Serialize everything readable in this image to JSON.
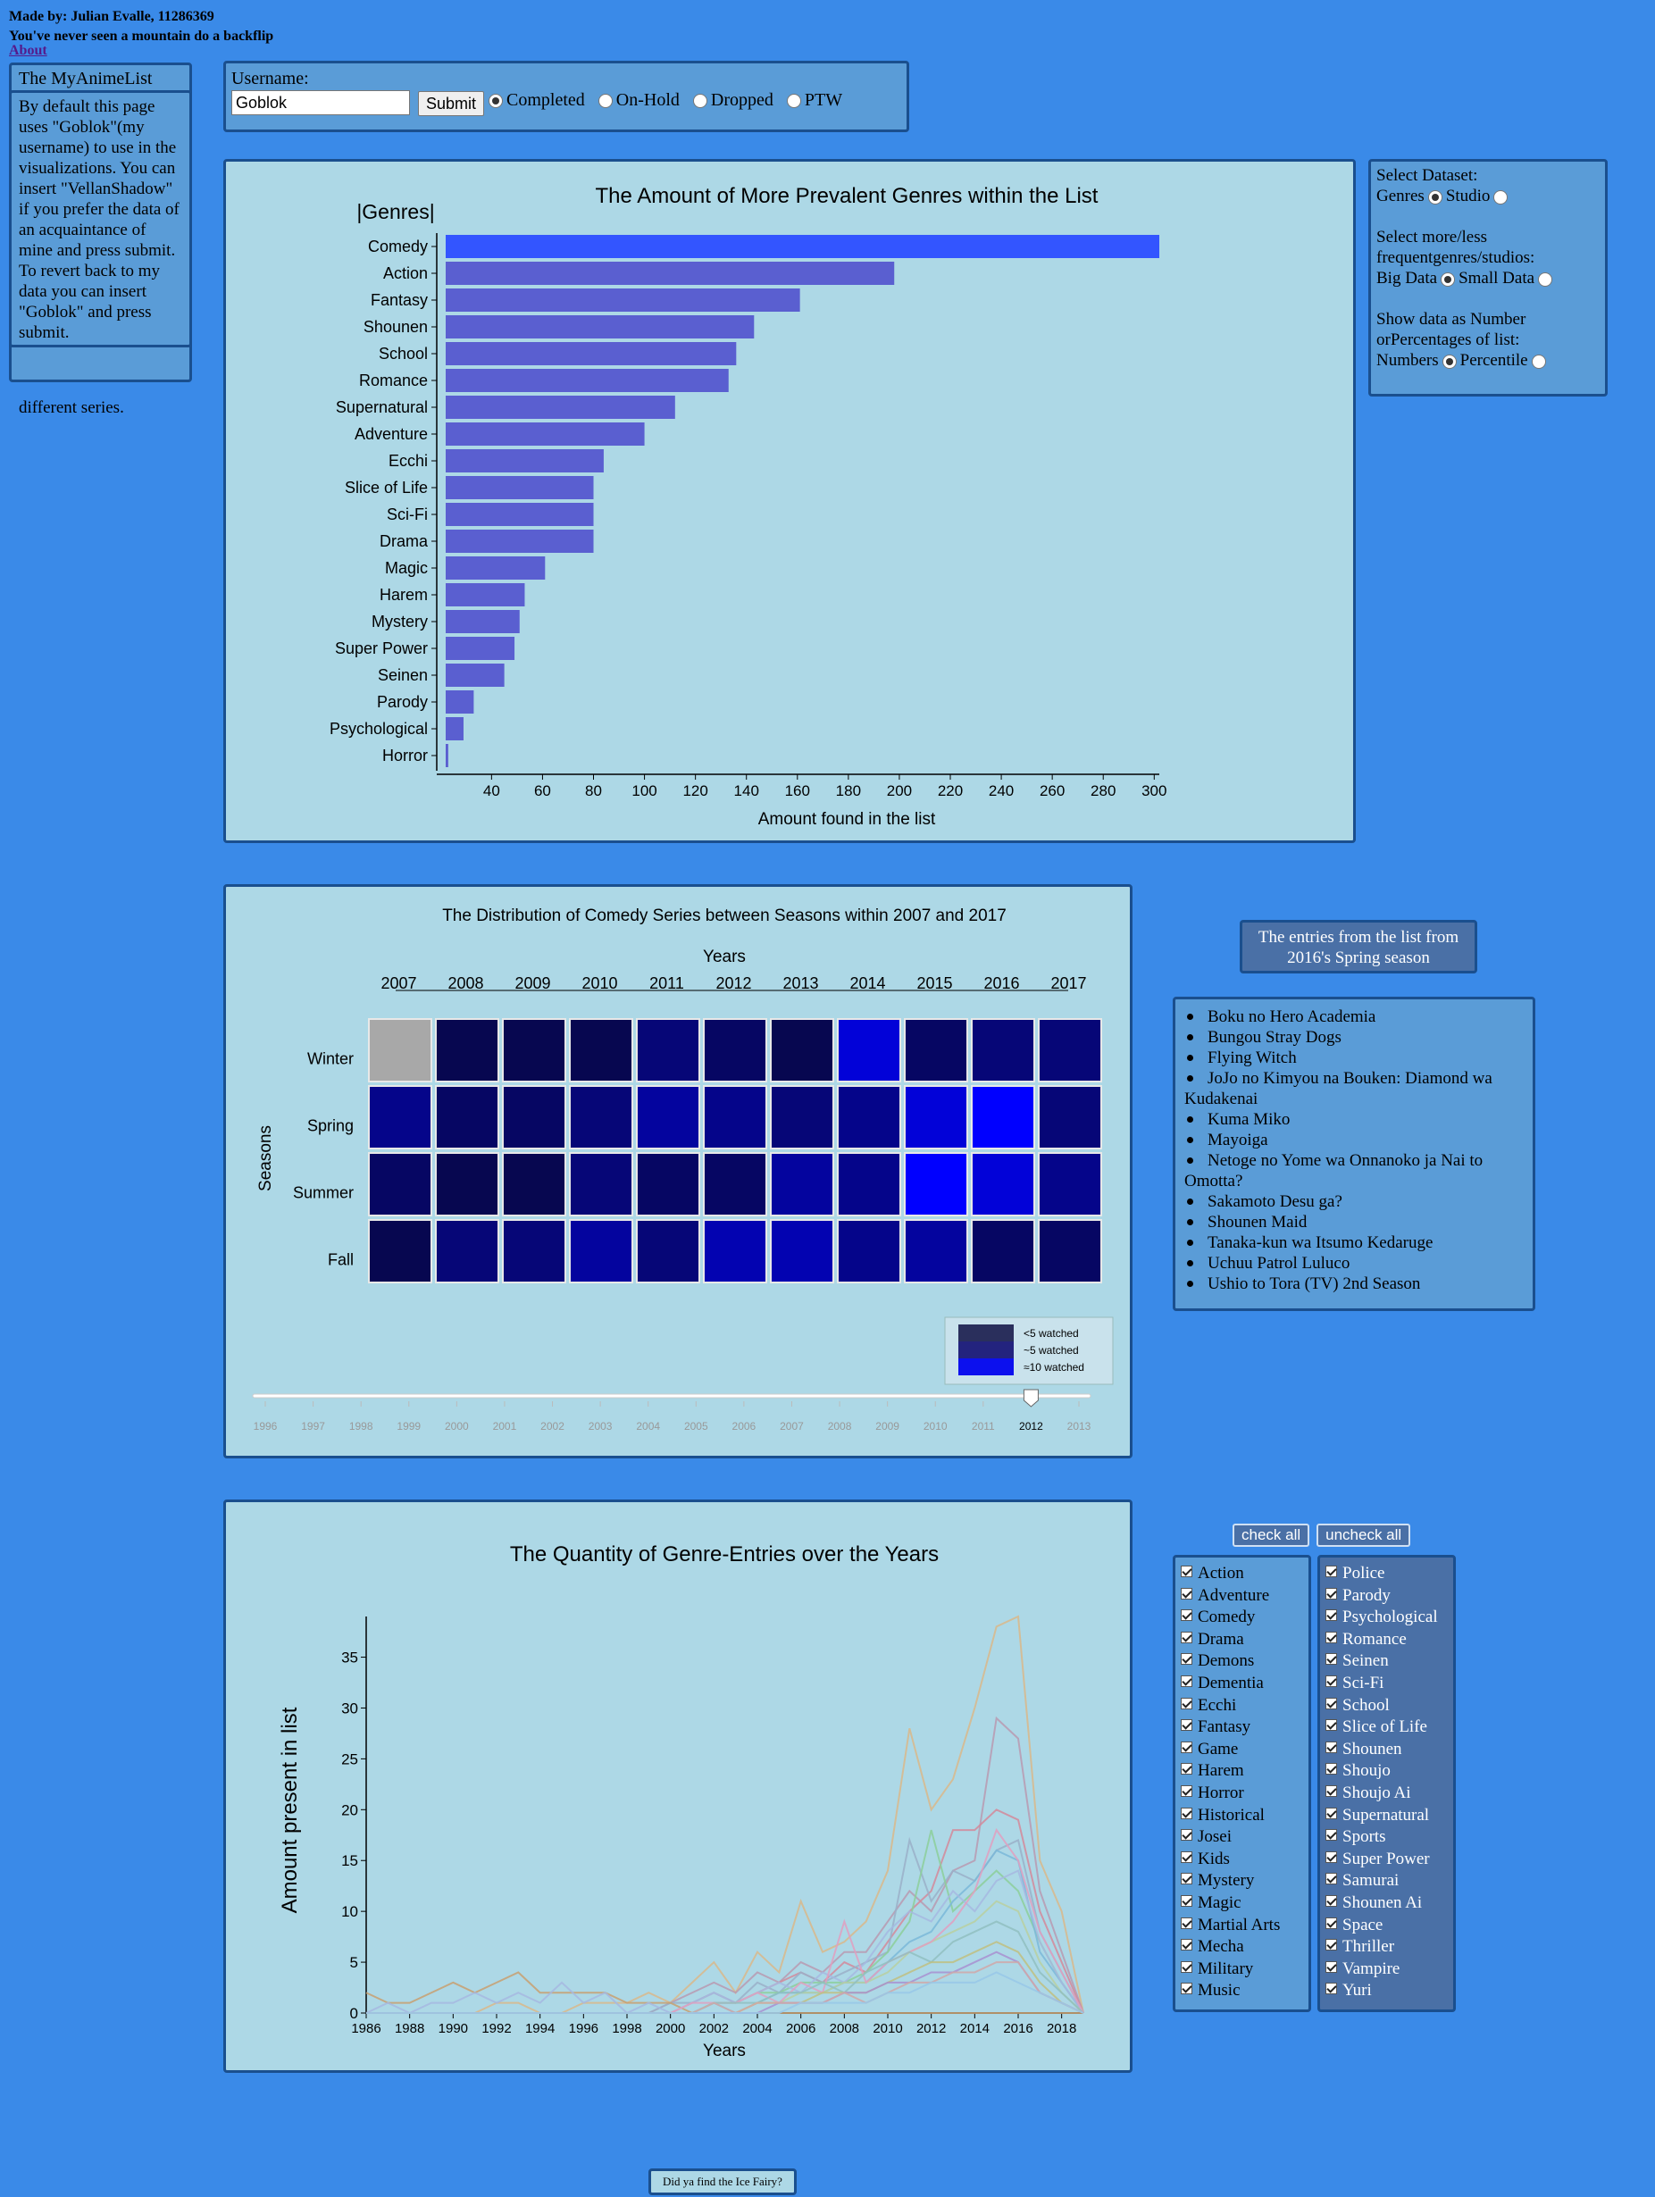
{
  "header": {
    "made_by": "Made by: Julian Evalle, 11286369",
    "tagline": "You've never seen a mountain do a backflip",
    "about_link": "About"
  },
  "sidebar": {
    "title": "The MyAnimeList",
    "description": "By default this page uses \"Goblok\"(my username) to use in the visualizations. You can insert \"VellanShadow\" if you prefer the data of an acquaintance of mine and press submit. To revert back to my data you can insert \"Goblok\" and press submit.",
    "under_text": "different series."
  },
  "form": {
    "username_label": "Username:",
    "username_value": "Goblok",
    "submit_label": "Submit",
    "options": [
      {
        "label": "Completed",
        "selected": true
      },
      {
        "label": "On-Hold",
        "selected": false
      },
      {
        "label": "Dropped",
        "selected": false
      },
      {
        "label": "PTW",
        "selected": false
      }
    ]
  },
  "controls": {
    "dataset_label": "Select Dataset:",
    "dataset_opt1": "Genres",
    "dataset_opt2": "Studio",
    "freq_label": "Select more/less frequentgenres/studios:",
    "freq_opt1": "Big Data",
    "freq_opt2": "Small Data",
    "show_label": "Show data as Number orPercentages of list:",
    "show_opt1": "Numbers",
    "show_opt2": "Percentile"
  },
  "chart_data": [
    {
      "type": "bar",
      "title": "The Amount of More Prevalent Genres within the List",
      "ylabel": "|Genres|",
      "xlabel": "Amount found in the list",
      "xlim": [
        22,
        302
      ],
      "xticks": [
        40,
        60,
        80,
        100,
        120,
        140,
        160,
        180,
        200,
        220,
        240,
        260,
        280,
        300
      ],
      "categories": [
        "Comedy",
        "Action",
        "Fantasy",
        "Shounen",
        "School",
        "Romance",
        "Supernatural",
        "Adventure",
        "Ecchi",
        "Slice of Life",
        "Sci-Fi",
        "Drama",
        "Magic",
        "Harem",
        "Mystery",
        "Super Power",
        "Seinen",
        "Parody",
        "Psychological",
        "Horror"
      ],
      "values": [
        302,
        198,
        161,
        143,
        136,
        133,
        112,
        100,
        84,
        80,
        80,
        80,
        61,
        53,
        51,
        49,
        45,
        33,
        29,
        23
      ],
      "colors": {
        "top": "#3355ff",
        "rest": "#5a5fd0"
      }
    },
    {
      "type": "heatmap",
      "title": "The Distribution of Comedy Series between Seasons within 2007 and 2017",
      "xlabel": "Years",
      "ylabel": "Seasons",
      "x": [
        "2007",
        "2008",
        "2009",
        "2010",
        "2011",
        "2012",
        "2013",
        "2014",
        "2015",
        "2016",
        "2017"
      ],
      "y": [
        "Winter",
        "Spring",
        "Summer",
        "Fall"
      ],
      "z": [
        [
          -1,
          1,
          1,
          1,
          3,
          2,
          1,
          8,
          2,
          3,
          3
        ],
        [
          4,
          2,
          2,
          3,
          5,
          4,
          3,
          4,
          8,
          10,
          3
        ],
        [
          2,
          1,
          1,
          3,
          2,
          2,
          5,
          4,
          10,
          8,
          4
        ],
        [
          1,
          3,
          3,
          5,
          3,
          6,
          6,
          4,
          5,
          2,
          2
        ]
      ],
      "legend": [
        "<5 watched",
        "~5 watched",
        "≈10 watched"
      ],
      "legend_colors": [
        "#2a2f5c",
        "#23237e",
        "#0c10ee"
      ],
      "slider": {
        "ticks": [
          "1996",
          "1997",
          "1998",
          "1999",
          "2000",
          "2001",
          "2002",
          "2003",
          "2004",
          "2005",
          "2006",
          "2007",
          "2008",
          "2009",
          "2010",
          "2011",
          "2012",
          "2013"
        ],
        "value": "2012"
      }
    },
    {
      "type": "line",
      "title": "The Quantity of Genre-Entries over the Years",
      "xlabel": "Years",
      "ylabel": "Amount present in list",
      "xlim": [
        1986,
        2019
      ],
      "ylim": [
        0,
        39
      ],
      "xticks": [
        1986,
        1988,
        1990,
        1992,
        1994,
        1996,
        1998,
        2000,
        2002,
        2004,
        2006,
        2008,
        2010,
        2012,
        2014,
        2016,
        2018
      ],
      "yticks": [
        0,
        5,
        10,
        15,
        20,
        25,
        30,
        35
      ],
      "x": [
        1986,
        1987,
        1988,
        1989,
        1990,
        1991,
        1992,
        1993,
        1994,
        1995,
        1996,
        1997,
        1998,
        1999,
        2000,
        2001,
        2002,
        2003,
        2004,
        2005,
        2006,
        2007,
        2008,
        2009,
        2010,
        2011,
        2012,
        2013,
        2014,
        2015,
        2016,
        2017,
        2018,
        2019
      ],
      "series": [
        {
          "color": "#d9b98a",
          "values": [
            0,
            0,
            0,
            0,
            0,
            0,
            1,
            1,
            0,
            0,
            1,
            1,
            1,
            2,
            1,
            3,
            5,
            2,
            6,
            4,
            11,
            6,
            7,
            9,
            14,
            28,
            20,
            23,
            30,
            38,
            39,
            15,
            10,
            0
          ]
        },
        {
          "color": "#b89ab0",
          "values": [
            0,
            0,
            0,
            0,
            0,
            0,
            0,
            0,
            0,
            0,
            0,
            0,
            0,
            0,
            1,
            2,
            3,
            2,
            4,
            3,
            5,
            4,
            6,
            6,
            9,
            12,
            10,
            14,
            15,
            29,
            27,
            12,
            6,
            0
          ]
        },
        {
          "color": "#d48a9a",
          "values": [
            0,
            0,
            0,
            0,
            0,
            0,
            0,
            0,
            0,
            0,
            0,
            0,
            0,
            0,
            0,
            1,
            2,
            1,
            2,
            3,
            4,
            3,
            5,
            4,
            7,
            10,
            12,
            18,
            18,
            20,
            19,
            10,
            5,
            0
          ]
        },
        {
          "color": "#9ab0c8",
          "values": [
            0,
            0,
            0,
            0,
            0,
            0,
            0,
            0,
            0,
            0,
            0,
            0,
            0,
            0,
            1,
            1,
            2,
            1,
            3,
            2,
            4,
            3,
            4,
            5,
            6,
            17,
            11,
            14,
            13,
            16,
            17,
            8,
            4,
            0
          ]
        },
        {
          "color": "#8ccf9a",
          "values": [
            0,
            0,
            0,
            0,
            0,
            0,
            0,
            0,
            0,
            0,
            0,
            0,
            0,
            0,
            0,
            0,
            1,
            1,
            2,
            2,
            3,
            3,
            3,
            4,
            6,
            9,
            18,
            10,
            12,
            14,
            12,
            7,
            3,
            0
          ]
        },
        {
          "color": "#7ab8d8",
          "values": [
            0,
            0,
            0,
            0,
            0,
            0,
            0,
            0,
            0,
            0,
            0,
            0,
            0,
            0,
            0,
            0,
            1,
            0,
            1,
            2,
            2,
            2,
            3,
            3,
            5,
            7,
            8,
            11,
            13,
            16,
            15,
            6,
            3,
            0
          ]
        },
        {
          "color": "#c8a070",
          "values": [
            2,
            1,
            1,
            2,
            3,
            2,
            3,
            4,
            2,
            2,
            2,
            2,
            1,
            1,
            1,
            0,
            0,
            0,
            0,
            0,
            0,
            0,
            0,
            0,
            0,
            0,
            0,
            0,
            0,
            0,
            0,
            0,
            0,
            0
          ]
        },
        {
          "color": "#a6b8e0",
          "values": [
            0,
            1,
            0,
            1,
            1,
            2,
            1,
            2,
            1,
            3,
            1,
            2,
            0,
            1,
            0,
            1,
            2,
            1,
            2,
            3,
            2,
            4,
            3,
            5,
            8,
            10,
            9,
            12,
            10,
            13,
            14,
            7,
            3,
            0
          ]
        },
        {
          "color": "#b8d0a0",
          "values": [
            0,
            0,
            0,
            0,
            0,
            0,
            0,
            0,
            0,
            0,
            0,
            0,
            0,
            0,
            0,
            0,
            0,
            0,
            1,
            1,
            2,
            2,
            3,
            3,
            4,
            6,
            7,
            8,
            9,
            11,
            10,
            5,
            2,
            0
          ]
        },
        {
          "color": "#e0a0c0",
          "values": [
            0,
            0,
            0,
            0,
            0,
            0,
            0,
            0,
            0,
            0,
            0,
            0,
            0,
            0,
            0,
            1,
            1,
            1,
            2,
            1,
            3,
            2,
            9,
            3,
            5,
            6,
            7,
            9,
            12,
            18,
            15,
            8,
            4,
            0
          ]
        },
        {
          "color": "#90c0c0",
          "values": [
            0,
            0,
            0,
            0,
            0,
            0,
            0,
            0,
            0,
            0,
            0,
            0,
            0,
            0,
            0,
            0,
            1,
            1,
            1,
            2,
            2,
            3,
            2,
            4,
            5,
            6,
            5,
            7,
            8,
            9,
            8,
            4,
            2,
            0
          ]
        },
        {
          "color": "#c0c080",
          "values": [
            0,
            0,
            0,
            0,
            0,
            0,
            0,
            0,
            0,
            0,
            0,
            0,
            0,
            0,
            0,
            0,
            0,
            0,
            1,
            1,
            1,
            2,
            2,
            2,
            3,
            4,
            5,
            5,
            6,
            7,
            6,
            3,
            1,
            0
          ]
        },
        {
          "color": "#a890d0",
          "values": [
            0,
            0,
            0,
            0,
            0,
            0,
            0,
            0,
            0,
            0,
            0,
            0,
            0,
            0,
            0,
            0,
            0,
            0,
            0,
            1,
            1,
            1,
            2,
            2,
            3,
            3,
            4,
            4,
            5,
            6,
            5,
            2,
            1,
            0
          ]
        },
        {
          "color": "#d0a8a8",
          "values": [
            0,
            0,
            0,
            0,
            0,
            0,
            0,
            0,
            0,
            0,
            0,
            0,
            0,
            0,
            0,
            0,
            1,
            0,
            1,
            1,
            1,
            1,
            2,
            1,
            2,
            3,
            3,
            4,
            4,
            5,
            5,
            2,
            1,
            0
          ]
        },
        {
          "color": "#98c8e8",
          "values": [
            0,
            0,
            0,
            0,
            0,
            0,
            0,
            0,
            0,
            0,
            0,
            0,
            0,
            0,
            0,
            0,
            0,
            0,
            0,
            0,
            1,
            1,
            1,
            1,
            2,
            2,
            3,
            3,
            3,
            4,
            3,
            2,
            1,
            0
          ]
        }
      ]
    }
  ],
  "spring": {
    "title": "The entries from the list from 2016's Spring season",
    "items": [
      "Boku no Hero Academia",
      "Bungou Stray Dogs",
      "Flying Witch",
      "JoJo no Kimyou na Bouken: Diamond wa Kudakenai",
      "Kuma Miko",
      "Mayoiga",
      "Netoge no Yome wa Onnanoko ja Nai to Omotta?",
      "Sakamoto Desu ga?",
      "Shounen Maid",
      "Tanaka-kun wa Itsumo Kedaruge",
      "Uchuu Patrol Luluco",
      "Ushio to Tora (TV) 2nd Season"
    ]
  },
  "genre_buttons": {
    "check_all": "check all",
    "uncheck_all": "uncheck all"
  },
  "genres_left": [
    "Action",
    "Adventure",
    "Comedy",
    "Drama",
    "Demons",
    "Dementia",
    "Ecchi",
    "Fantasy",
    "Game",
    "Harem",
    "Horror",
    "Historical",
    "Josei",
    "Kids",
    "Mystery",
    "Magic",
    "Martial Arts",
    "Mecha",
    "Military",
    "Music"
  ],
  "genres_right": [
    "Police",
    "Parody",
    "Psychological",
    "Romance",
    "Seinen",
    "Sci-Fi",
    "School",
    "Slice of Life",
    "Shounen",
    "Shoujo",
    "Shoujo Ai",
    "Supernatural",
    "Sports",
    "Super Power",
    "Samurai",
    "Shounen Ai",
    "Space",
    "Thriller",
    "Vampire",
    "Yuri"
  ],
  "footer": {
    "button": "Did ya find the Ice Fairy?"
  }
}
